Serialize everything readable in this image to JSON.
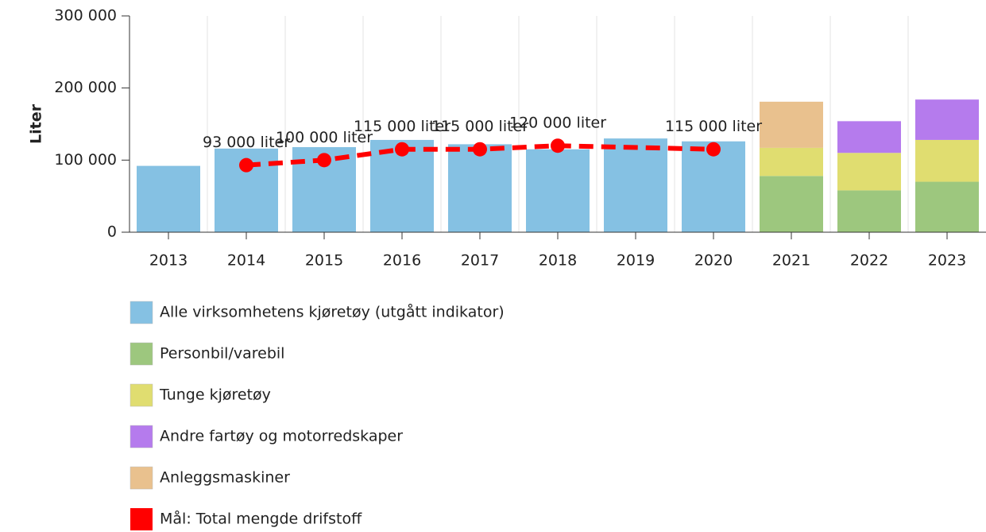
{
  "chart_data": {
    "type": "bar",
    "y_label": "Liter",
    "categories": [
      "2013",
      "2014",
      "2015",
      "2016",
      "2017",
      "2018",
      "2019",
      "2020",
      "2021",
      "2022",
      "2023"
    ],
    "ylim": [
      0,
      300000
    ],
    "yticks": [
      {
        "value": 0,
        "label": "0"
      },
      {
        "value": 100000,
        "label": "100 000"
      },
      {
        "value": 200000,
        "label": "200 000"
      },
      {
        "value": 300000,
        "label": "300 000"
      }
    ],
    "grid": true,
    "legend": "bottom",
    "series": [
      {
        "name": "Alle virksomhetens kjøretøy (utgått indikator)",
        "color": "#85c1e3",
        "type": "bar",
        "values": [
          92000,
          116000,
          118000,
          128000,
          122000,
          115000,
          130000,
          126000,
          null,
          null,
          null
        ]
      },
      {
        "name": "Personbil/varebil",
        "color": "#9dc77e",
        "type": "bar",
        "stack": true,
        "values": [
          null,
          null,
          null,
          null,
          null,
          null,
          null,
          null,
          78000,
          58000,
          70000
        ]
      },
      {
        "name": "Tunge kjøretøy",
        "color": "#e0dd70",
        "type": "bar",
        "stack": true,
        "values": [
          null,
          null,
          null,
          null,
          null,
          null,
          null,
          null,
          39000,
          52000,
          58000
        ]
      },
      {
        "name": "Andre fartøy og motorredskaper",
        "color": "#b57bed",
        "type": "bar",
        "stack": true,
        "values": [
          null,
          null,
          null,
          null,
          null,
          null,
          null,
          null,
          null,
          44000,
          56000
        ]
      },
      {
        "name": "Anleggsmaskiner",
        "color": "#e9c18e",
        "type": "bar",
        "stack": true,
        "values": [
          null,
          null,
          null,
          null,
          null,
          null,
          null,
          null,
          64000,
          null,
          null
        ]
      },
      {
        "name": "Mål: Total mengde drifstoff",
        "color": "#ff0000",
        "type": "line",
        "dashed": true,
        "connect_nulls": true,
        "values": [
          null,
          93000,
          100000,
          115000,
          115000,
          120000,
          null,
          115000,
          null,
          null,
          null
        ],
        "value_labels": [
          null,
          "93 000 liter",
          "100 000 liter",
          "115 000 liter",
          "115 000 liter",
          "120 000 liter",
          null,
          "115 000 liter",
          null,
          null,
          null
        ]
      }
    ]
  }
}
